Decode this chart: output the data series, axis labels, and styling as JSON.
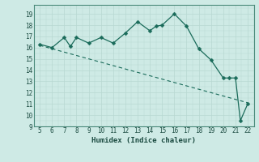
{
  "x_main": [
    5,
    6,
    7,
    7.5,
    8,
    9,
    10,
    11,
    12,
    13,
    14,
    14.5,
    15,
    16,
    17,
    18,
    19,
    20,
    20.5,
    21,
    21.4,
    22
  ],
  "y_main": [
    16.3,
    16.0,
    16.9,
    16.1,
    16.9,
    16.4,
    16.9,
    16.4,
    17.3,
    18.3,
    17.5,
    17.9,
    18.0,
    19.0,
    17.9,
    15.9,
    14.9,
    13.3,
    13.3,
    13.3,
    9.5,
    11.0
  ],
  "trend_x": [
    5,
    22
  ],
  "trend_y": [
    16.2,
    11.1
  ],
  "xlabel": "Humidex (Indice chaleur)",
  "xlim": [
    4.5,
    22.5
  ],
  "ylim": [
    9,
    19.8
  ],
  "yticks": [
    9,
    10,
    11,
    12,
    13,
    14,
    15,
    16,
    17,
    18,
    19
  ],
  "xticks": [
    5,
    6,
    7,
    8,
    9,
    10,
    11,
    12,
    13,
    14,
    15,
    16,
    17,
    18,
    19,
    20,
    21,
    22
  ],
  "line_color": "#1a6b5a",
  "bg_color": "#ceeae5",
  "grid_major_color": "#b8d8d2",
  "grid_minor_color": "#d4eeea",
  "markersize": 2.5
}
